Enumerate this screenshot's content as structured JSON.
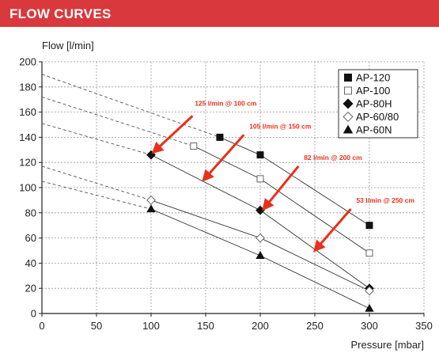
{
  "header": {
    "title": "FLOW CURVES"
  },
  "chart_data": {
    "type": "line",
    "title": "",
    "ylabel": "Flow [l/min]",
    "xlabel": "Pressure [mbar]",
    "xlim": [
      0,
      350
    ],
    "ylim": [
      0,
      200
    ],
    "xticks": [
      0,
      50,
      100,
      150,
      200,
      250,
      300,
      350
    ],
    "yticks": [
      0,
      20,
      40,
      60,
      80,
      100,
      120,
      140,
      160,
      180,
      200
    ],
    "grid": true,
    "legend_position": "top-right",
    "series": [
      {
        "name": "AP-120",
        "marker": "square-filled",
        "extrapolated_y0": 190,
        "points": [
          [
            163,
            140
          ],
          [
            200,
            126
          ],
          [
            300,
            70
          ]
        ]
      },
      {
        "name": "AP-100",
        "marker": "square-open",
        "extrapolated_y0": 172,
        "points": [
          [
            139,
            133
          ],
          [
            200,
            107
          ],
          [
            300,
            48
          ]
        ]
      },
      {
        "name": "AP-80H",
        "marker": "diamond-filled",
        "extrapolated_y0": 151,
        "points": [
          [
            100,
            126
          ],
          [
            200,
            82
          ],
          [
            300,
            20
          ]
        ]
      },
      {
        "name": "AP-60/80",
        "marker": "diamond-open",
        "extrapolated_y0": 117,
        "points": [
          [
            100,
            90
          ],
          [
            200,
            60
          ],
          [
            300,
            18
          ]
        ]
      },
      {
        "name": "AP-60N",
        "marker": "triangle-filled",
        "extrapolated_y0": 105,
        "points": [
          [
            100,
            83
          ],
          [
            200,
            46
          ],
          [
            300,
            4
          ]
        ]
      }
    ],
    "annotations": [
      {
        "text": "125 l/min @ 100 cm",
        "text_at": [
          140,
          165
        ],
        "tail": [
          138,
          157
        ],
        "head": [
          102,
          128
        ]
      },
      {
        "text": "105 l/min @ 150 cm",
        "text_at": [
          190,
          147
        ],
        "tail": [
          185,
          142
        ],
        "head": [
          148,
          106
        ]
      },
      {
        "text": "82 l/min @ 200 cm",
        "text_at": [
          240,
          122
        ],
        "tail": [
          235,
          117
        ],
        "head": [
          203,
          83
        ]
      },
      {
        "text": "53 l/min @ 250 cm",
        "text_at": [
          288,
          88
        ],
        "tail": [
          283,
          83
        ],
        "head": [
          250,
          50
        ]
      }
    ]
  }
}
